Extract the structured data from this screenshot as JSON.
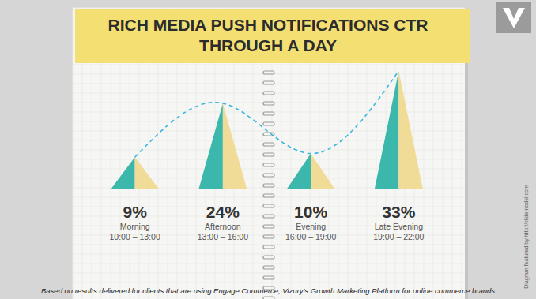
{
  "chart_data": {
    "type": "bar",
    "title": "RICH MEDIA PUSH NOTIFICATIONS CTR THROUGH A DAY",
    "categories": [
      "Morning\n10:00 – 13:00",
      "Afternoon\n13:00 – 16:00",
      "Evening\n16:00 – 19:00",
      "Late Evening\n19:00 – 22:00"
    ],
    "values": [
      9,
      24,
      10,
      33
    ],
    "value_labels": [
      "9%",
      "24%",
      "10%",
      "33%"
    ],
    "data_labels": true,
    "color": "#3bb8ab",
    "line_style": "dashed",
    "tick_labels": false,
    "annotations": [
      "Based on results delivered for clients that are using Engage Commerce, Vizury's Growth Marketing Platform for online commerce brands",
      "Diagram featured by http://slidemodel.com"
    ]
  }
}
